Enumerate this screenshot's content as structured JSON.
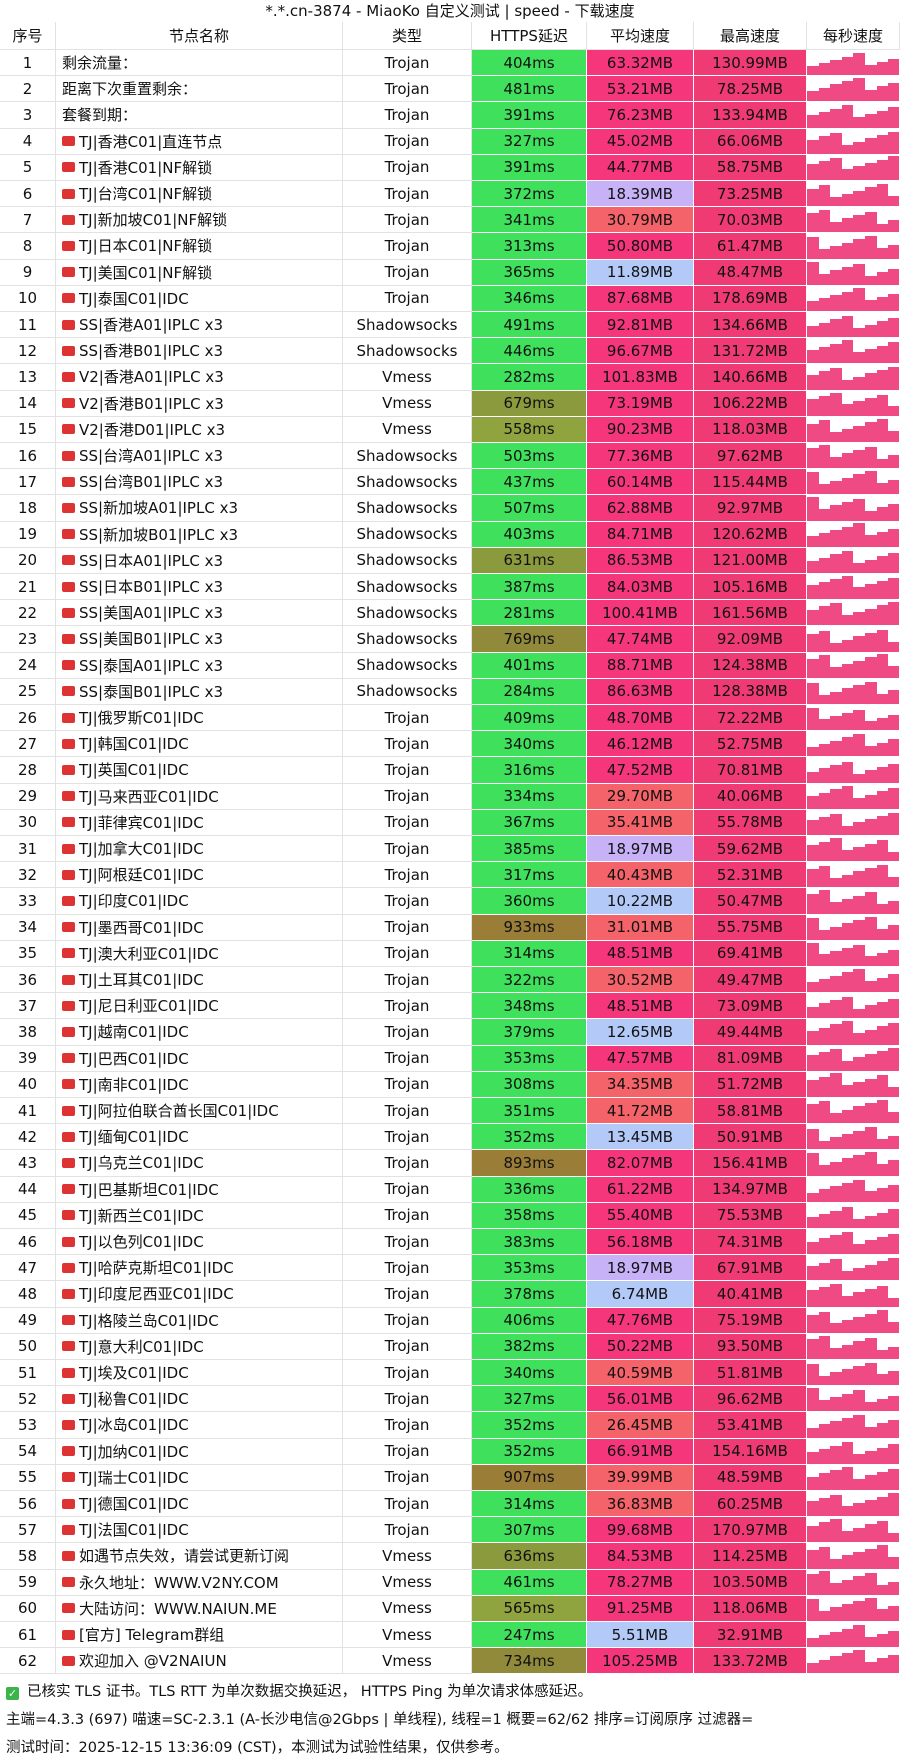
{
  "title": "*.*.cn-3874 - MiaoKo 自定义测试 | speed - 下载速度",
  "headers": [
    "序号",
    "节点名称",
    "类型",
    "HTTPS延迟",
    "平均速度",
    "最高速度",
    "每秒速度"
  ],
  "rows": [
    [
      "1",
      "剩余流量：",
      "Trojan",
      "404ms",
      "63.32MB",
      "130.99MB"
    ],
    [
      "2",
      "距离下次重置剩余：",
      "Trojan",
      "481ms",
      "53.21MB",
      "78.25MB"
    ],
    [
      "3",
      "套餐到期：",
      "Trojan",
      "391ms",
      "76.23MB",
      "133.94MB"
    ],
    [
      "4",
      "TJ|香港C01|直连节点",
      "Trojan",
      "327ms",
      "45.02MB",
      "66.06MB"
    ],
    [
      "5",
      "TJ|香港C01|NF解锁",
      "Trojan",
      "391ms",
      "44.77MB",
      "58.75MB"
    ],
    [
      "6",
      "TJ|台湾C01|NF解锁",
      "Trojan",
      "372ms",
      "18.39MB",
      "73.25MB"
    ],
    [
      "7",
      "TJ|新加坡C01|NF解锁",
      "Trojan",
      "341ms",
      "30.79MB",
      "70.03MB"
    ],
    [
      "8",
      "TJ|日本C01|NF解锁",
      "Trojan",
      "313ms",
      "50.80MB",
      "61.47MB"
    ],
    [
      "9",
      "TJ|美国C01|NF解锁",
      "Trojan",
      "365ms",
      "11.89MB",
      "48.47MB"
    ],
    [
      "10",
      "TJ|泰国C01|IDC",
      "Trojan",
      "346ms",
      "87.68MB",
      "178.69MB"
    ],
    [
      "11",
      "SS|香港A01|IPLC x3",
      "Shadowsocks",
      "491ms",
      "92.81MB",
      "134.66MB"
    ],
    [
      "12",
      "SS|香港B01|IPLC x3",
      "Shadowsocks",
      "446ms",
      "96.67MB",
      "131.72MB"
    ],
    [
      "13",
      "V2|香港A01|IPLC x3",
      "Vmess",
      "282ms",
      "101.83MB",
      "140.66MB"
    ],
    [
      "14",
      "V2|香港B01|IPLC x3",
      "Vmess",
      "679ms",
      "73.19MB",
      "106.22MB"
    ],
    [
      "15",
      "V2|香港D01|IPLC x3",
      "Vmess",
      "558ms",
      "90.23MB",
      "118.03MB"
    ],
    [
      "16",
      "SS|台湾A01|IPLC x3",
      "Shadowsocks",
      "503ms",
      "77.36MB",
      "97.62MB"
    ],
    [
      "17",
      "SS|台湾B01|IPLC x3",
      "Shadowsocks",
      "437ms",
      "60.14MB",
      "115.44MB"
    ],
    [
      "18",
      "SS|新加坡A01|IPLC x3",
      "Shadowsocks",
      "507ms",
      "62.88MB",
      "92.97MB"
    ],
    [
      "19",
      "SS|新加坡B01|IPLC x3",
      "Shadowsocks",
      "403ms",
      "84.71MB",
      "120.62MB"
    ],
    [
      "20",
      "SS|日本A01|IPLC x3",
      "Shadowsocks",
      "631ms",
      "86.53MB",
      "121.00MB"
    ],
    [
      "21",
      "SS|日本B01|IPLC x3",
      "Shadowsocks",
      "387ms",
      "84.03MB",
      "105.16MB"
    ],
    [
      "22",
      "SS|美国A01|IPLC x3",
      "Shadowsocks",
      "281ms",
      "100.41MB",
      "161.56MB"
    ],
    [
      "23",
      "SS|美国B01|IPLC x3",
      "Shadowsocks",
      "769ms",
      "47.74MB",
      "92.09MB"
    ],
    [
      "24",
      "SS|泰国A01|IPLC x3",
      "Shadowsocks",
      "401ms",
      "88.71MB",
      "124.38MB"
    ],
    [
      "25",
      "SS|泰国B01|IPLC x3",
      "Shadowsocks",
      "284ms",
      "86.63MB",
      "128.38MB"
    ],
    [
      "26",
      "TJ|俄罗斯C01|IDC",
      "Trojan",
      "409ms",
      "48.70MB",
      "72.22MB"
    ],
    [
      "27",
      "TJ|韩国C01|IDC",
      "Trojan",
      "340ms",
      "46.12MB",
      "52.75MB"
    ],
    [
      "28",
      "TJ|英国C01|IDC",
      "Trojan",
      "316ms",
      "47.52MB",
      "70.81MB"
    ],
    [
      "29",
      "TJ|马来西亚C01|IDC",
      "Trojan",
      "334ms",
      "29.70MB",
      "40.06MB"
    ],
    [
      "30",
      "TJ|菲律宾C01|IDC",
      "Trojan",
      "367ms",
      "35.41MB",
      "55.78MB"
    ],
    [
      "31",
      "TJ|加拿大C01|IDC",
      "Trojan",
      "385ms",
      "18.97MB",
      "59.62MB"
    ],
    [
      "32",
      "TJ|阿根廷C01|IDC",
      "Trojan",
      "317ms",
      "40.43MB",
      "52.31MB"
    ],
    [
      "33",
      "TJ|印度C01|IDC",
      "Trojan",
      "360ms",
      "10.22MB",
      "50.47MB"
    ],
    [
      "34",
      "TJ|墨西哥C01|IDC",
      "Trojan",
      "933ms",
      "31.01MB",
      "55.75MB"
    ],
    [
      "35",
      "TJ|澳大利亚C01|IDC",
      "Trojan",
      "314ms",
      "48.51MB",
      "69.41MB"
    ],
    [
      "36",
      "TJ|土耳其C01|IDC",
      "Trojan",
      "322ms",
      "30.52MB",
      "49.47MB"
    ],
    [
      "37",
      "TJ|尼日利亚C01|IDC",
      "Trojan",
      "348ms",
      "48.51MB",
      "73.09MB"
    ],
    [
      "38",
      "TJ|越南C01|IDC",
      "Trojan",
      "379ms",
      "12.65MB",
      "49.44MB"
    ],
    [
      "39",
      "TJ|巴西C01|IDC",
      "Trojan",
      "353ms",
      "47.57MB",
      "81.09MB"
    ],
    [
      "40",
      "TJ|南非C01|IDC",
      "Trojan",
      "308ms",
      "34.35MB",
      "51.72MB"
    ],
    [
      "41",
      "TJ|阿拉伯联合酋长国C01|IDC",
      "Trojan",
      "351ms",
      "41.72MB",
      "58.81MB"
    ],
    [
      "42",
      "TJ|缅甸C01|IDC",
      "Trojan",
      "352ms",
      "13.45MB",
      "50.91MB"
    ],
    [
      "43",
      "TJ|乌克兰C01|IDC",
      "Trojan",
      "893ms",
      "82.07MB",
      "156.41MB"
    ],
    [
      "44",
      "TJ|巴基斯坦C01|IDC",
      "Trojan",
      "336ms",
      "61.22MB",
      "134.97MB"
    ],
    [
      "45",
      "TJ|新西兰C01|IDC",
      "Trojan",
      "358ms",
      "55.40MB",
      "75.53MB"
    ],
    [
      "46",
      "TJ|以色列C01|IDC",
      "Trojan",
      "383ms",
      "56.18MB",
      "74.31MB"
    ],
    [
      "47",
      "TJ|哈萨克斯坦C01|IDC",
      "Trojan",
      "353ms",
      "18.97MB",
      "67.91MB"
    ],
    [
      "48",
      "TJ|印度尼西亚C01|IDC",
      "Trojan",
      "378ms",
      "6.74MB",
      "40.41MB"
    ],
    [
      "49",
      "TJ|格陵兰岛C01|IDC",
      "Trojan",
      "406ms",
      "47.76MB",
      "75.19MB"
    ],
    [
      "50",
      "TJ|意大利C01|IDC",
      "Trojan",
      "382ms",
      "50.22MB",
      "93.50MB"
    ],
    [
      "51",
      "TJ|埃及C01|IDC",
      "Trojan",
      "340ms",
      "40.59MB",
      "51.81MB"
    ],
    [
      "52",
      "TJ|秘鲁C01|IDC",
      "Trojan",
      "327ms",
      "56.01MB",
      "96.62MB"
    ],
    [
      "53",
      "TJ|冰岛C01|IDC",
      "Trojan",
      "352ms",
      "26.45MB",
      "53.41MB"
    ],
    [
      "54",
      "TJ|加纳C01|IDC",
      "Trojan",
      "352ms",
      "66.91MB",
      "154.16MB"
    ],
    [
      "55",
      "TJ|瑞士C01|IDC",
      "Trojan",
      "907ms",
      "39.99MB",
      "48.59MB"
    ],
    [
      "56",
      "TJ|德国C01|IDC",
      "Trojan",
      "314ms",
      "36.83MB",
      "60.25MB"
    ],
    [
      "57",
      "TJ|法国C01|IDC",
      "Trojan",
      "307ms",
      "99.68MB",
      "170.97MB"
    ],
    [
      "58",
      "如遇节点失效，请尝试更新订阅",
      "Vmess",
      "636ms",
      "84.53MB",
      "114.25MB"
    ],
    [
      "59",
      "永久地址：WWW.V2NY.COM",
      "Vmess",
      "461ms",
      "78.27MB",
      "103.50MB"
    ],
    [
      "60",
      "大陆访问：WWW.NAIUN.ME",
      "Vmess",
      "565ms",
      "91.25MB",
      "118.06MB"
    ],
    [
      "61",
      "[官方] Telegram群组",
      "Vmess",
      "247ms",
      "5.51MB",
      "32.91MB"
    ],
    [
      "62",
      "欢迎加入 @V2NAIUN",
      "Vmess",
      "734ms",
      "105.25MB",
      "133.72MB"
    ]
  ],
  "footer": [
    "已核实 TLS 证书。TLS RTT 为单次数据交换延迟， HTTPS Ping 为单次请求体感延迟。",
    "主端=4.3.3 (697) 喵速=SC-2.3.1 (A-长沙电信@2Gbps | 单线程), 线程=1 概要=62/62 排序=订阅原序 过滤器=",
    "测试时间：2025-12-15 13:36:09 (CST)，本测试为试验性结果，仅供参考。"
  ]
}
